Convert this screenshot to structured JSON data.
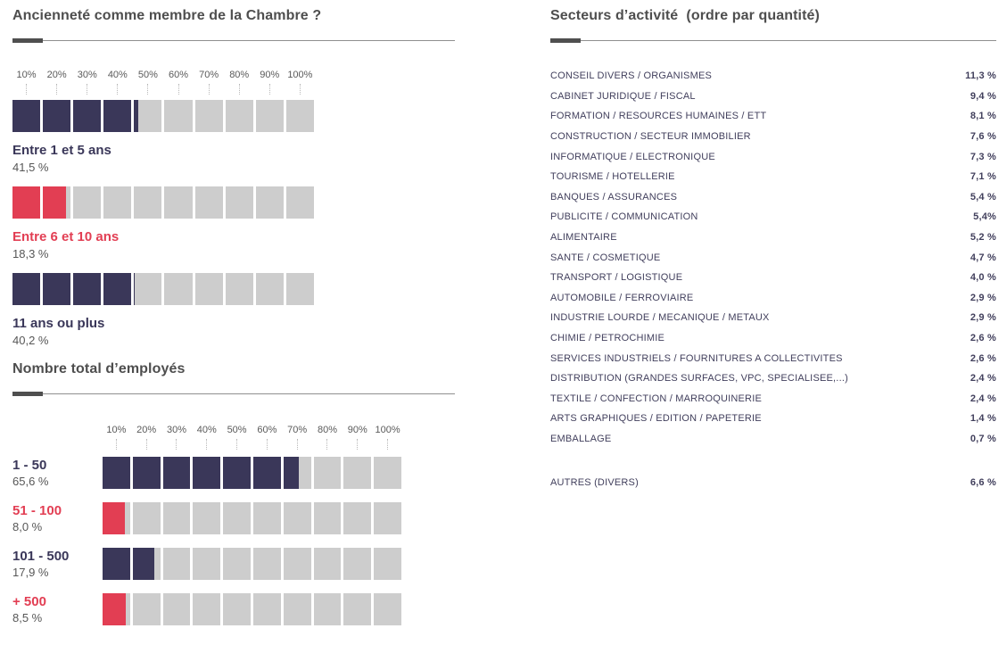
{
  "colors": {
    "navy": "#3a3759",
    "red": "#e23e53",
    "track": "#cdcdcd",
    "accent_dark": "#4f4f4f"
  },
  "seniority": {
    "title": "Ancienneté comme membre de la Chambre ?",
    "axis_ticks": [
      "10%",
      "20%",
      "30%",
      "40%",
      "50%",
      "60%",
      "70%",
      "80%",
      "90%",
      "100%"
    ],
    "rows": [
      {
        "label": "Entre 1 et 5 ans",
        "value_label": "41,5 %",
        "value": 41.5,
        "color": "navy"
      },
      {
        "label": "Entre 6 et 10 ans",
        "value_label": "18,3 %",
        "value": 18.3,
        "color": "red"
      },
      {
        "label": "11 ans ou plus",
        "value_label": "40,2 %",
        "value": 40.2,
        "color": "navy"
      }
    ]
  },
  "employees": {
    "title": "Nombre total d’employés",
    "axis_ticks": [
      "10%",
      "20%",
      "30%",
      "40%",
      "50%",
      "60%",
      "70%",
      "80%",
      "90%",
      "100%"
    ],
    "rows": [
      {
        "label": "1 - 50",
        "value_label": "65,6 %",
        "value": 65.6,
        "color": "navy"
      },
      {
        "label": "51 - 100",
        "value_label": "8,0 %",
        "value": 8.0,
        "color": "red"
      },
      {
        "label": "101 - 500",
        "value_label": "17,9 %",
        "value": 17.9,
        "color": "navy"
      },
      {
        "label": "+ 500",
        "value_label": "8,5 %",
        "value": 8.5,
        "color": "red"
      }
    ]
  },
  "sectors": {
    "title": "Secteurs d’activité  (ordre par quantité)",
    "items": [
      {
        "label": "CONSEIL DIVERS / ORGANISMES",
        "value": "11,3 %"
      },
      {
        "label": "CABINET JURIDIQUE / FISCAL",
        "value": "9,4 %"
      },
      {
        "label": "FORMATION / RESOURCES HUMAINES / ETT",
        "value": "8,1 %"
      },
      {
        "label": "CONSTRUCTION / SECTEUR IMMOBILIER",
        "value": "7,6 %"
      },
      {
        "label": "INFORMATIQUE / ELECTRONIQUE",
        "value": "7,3 %"
      },
      {
        "label": "TOURISME / HOTELLERIE",
        "value": "7,1 %"
      },
      {
        "label": "BANQUES / ASSURANCES",
        "value": "5,4 %"
      },
      {
        "label": "PUBLICITE / COMMUNICATION",
        "value": "5,4%"
      },
      {
        "label": "ALIMENTAIRE",
        "value": "5,2 %"
      },
      {
        "label": "SANTE / COSMETIQUE",
        "value": "4,7 %"
      },
      {
        "label": "TRANSPORT / LOGISTIQUE",
        "value": "4,0 %"
      },
      {
        "label": "AUTOMOBILE / FERROVIAIRE",
        "value": "2,9 %"
      },
      {
        "label": "INDUSTRIE LOURDE / MECANIQUE / METAUX",
        "value": "2,9 %"
      },
      {
        "label": "CHIMIE / PETROCHIMIE",
        "value": "2,6 %"
      },
      {
        "label": "SERVICES INDUSTRIELS / FOURNITURES A COLLECTIVITES",
        "value": "2,6 %"
      },
      {
        "label": "DISTRIBUTION (GRANDES SURFACES, VPC, SPECIALISEE,...)",
        "value": "2,4 %"
      },
      {
        "label": "TEXTILE / CONFECTION / MARROQUINERIE",
        "value": "2,4 %"
      },
      {
        "label": "ARTS GRAPHIQUES / EDITION / PAPETERIE",
        "value": "1,4 %"
      },
      {
        "label": "EMBALLAGE",
        "value": "0,7 %"
      }
    ],
    "other": {
      "label": "AUTRES (DIVERS)",
      "value": "6,6 %"
    }
  },
  "chart_data": [
    {
      "type": "bar",
      "title": "Ancienneté comme membre de la Chambre ?",
      "categories": [
        "Entre 1 et 5 ans",
        "Entre 6 et 10 ans",
        "11 ans ou plus"
      ],
      "values": [
        41.5,
        18.3,
        40.2
      ],
      "unit": "%",
      "xlabel": "",
      "ylabel": "",
      "xlim": [
        0,
        100
      ],
      "tick_labels": [
        "10%",
        "20%",
        "30%",
        "40%",
        "50%",
        "60%",
        "70%",
        "80%",
        "90%",
        "100%"
      ],
      "orientation": "horizontal-segmented",
      "highlight_color_rows": [
        1
      ]
    },
    {
      "type": "bar",
      "title": "Nombre total d’employés",
      "categories": [
        "1 - 50",
        "51 - 100",
        "101 - 500",
        "+ 500"
      ],
      "values": [
        65.6,
        8.0,
        17.9,
        8.5
      ],
      "unit": "%",
      "xlabel": "",
      "ylabel": "",
      "xlim": [
        0,
        100
      ],
      "tick_labels": [
        "10%",
        "20%",
        "30%",
        "40%",
        "50%",
        "60%",
        "70%",
        "80%",
        "90%",
        "100%"
      ],
      "orientation": "horizontal-segmented",
      "highlight_color_rows": [
        1,
        3
      ]
    },
    {
      "type": "table",
      "title": "Secteurs d’activité (ordre par quantité)",
      "rows": [
        [
          "CONSEIL DIVERS / ORGANISMES",
          11.3
        ],
        [
          "CABINET JURIDIQUE / FISCAL",
          9.4
        ],
        [
          "FORMATION / RESOURCES HUMAINES / ETT",
          8.1
        ],
        [
          "CONSTRUCTION / SECTEUR IMMOBILIER",
          7.6
        ],
        [
          "INFORMATIQUE / ELECTRONIQUE",
          7.3
        ],
        [
          "TOURISME / HOTELLERIE",
          7.1
        ],
        [
          "BANQUES / ASSURANCES",
          5.4
        ],
        [
          "PUBLICITE / COMMUNICATION",
          5.4
        ],
        [
          "ALIMENTAIRE",
          5.2
        ],
        [
          "SANTE / COSMETIQUE",
          4.7
        ],
        [
          "TRANSPORT / LOGISTIQUE",
          4.0
        ],
        [
          "AUTOMOBILE / FERROVIAIRE",
          2.9
        ],
        [
          "INDUSTRIE LOURDE / MECANIQUE / METAUX",
          2.9
        ],
        [
          "CHIMIE / PETROCHIMIE",
          2.6
        ],
        [
          "SERVICES INDUSTRIELS / FOURNITURES A COLLECTIVITES",
          2.6
        ],
        [
          "DISTRIBUTION (GRANDES SURFACES, VPC, SPECIALISEE,...)",
          2.4
        ],
        [
          "TEXTILE / CONFECTION / MARROQUINERIE",
          2.4
        ],
        [
          "ARTS GRAPHIQUES / EDITION / PAPETERIE",
          1.4
        ],
        [
          "EMBALLAGE",
          0.7
        ],
        [
          "AUTRES (DIVERS)",
          6.6
        ]
      ],
      "unit": "%"
    }
  ]
}
